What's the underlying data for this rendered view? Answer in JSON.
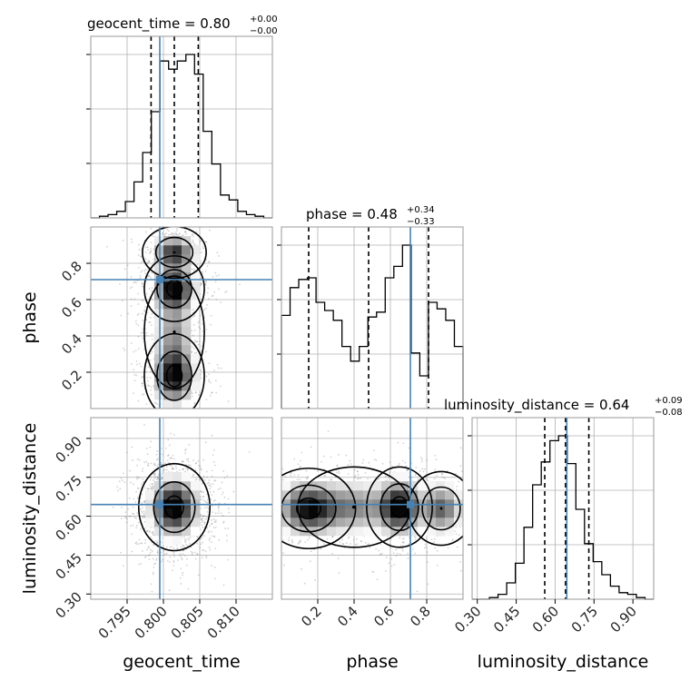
{
  "chart_data": {
    "type": "corner",
    "colors": {
      "truth": "#4682b4",
      "hist": "#000000",
      "grid": "#b0b0b0",
      "points": "#7f7f7f"
    },
    "grid": true,
    "parameters": [
      {
        "key": "geocent_time",
        "label": "geocent_time",
        "range": [
          0.79,
          0.815
        ],
        "ticks": [
          0.795,
          0.8,
          0.805,
          0.81
        ],
        "tick_labels": [
          "0.795",
          "0.800",
          "0.805",
          "0.810"
        ],
        "truth": 0.7995,
        "title": {
          "prefix": "geocent_time = 0.80",
          "plus": "+0.00",
          "minus": "−0.00"
        },
        "quantiles": [
          0.7983,
          0.8015,
          0.8048
        ],
        "hist": [
          0.0,
          0.01,
          0.02,
          0.04,
          0.1,
          0.22,
          0.4,
          0.65,
          0.96,
          0.91,
          0.96,
          1.0,
          0.88,
          0.53,
          0.33,
          0.14,
          0.11,
          0.04,
          0.02,
          0.01,
          0.0
        ]
      },
      {
        "key": "phase",
        "label": "phase",
        "range": [
          0.0,
          1.0
        ],
        "ticks": [
          0.2,
          0.4,
          0.6,
          0.8
        ],
        "tick_labels": [
          "0.2",
          "0.4",
          "0.6",
          "0.8"
        ],
        "truth": 0.71,
        "title": {
          "prefix": "phase = 0.48",
          "plus": "+0.34",
          "minus": "−0.33"
        },
        "quantiles": [
          0.15,
          0.48,
          0.81
        ],
        "hist": [
          0.57,
          0.74,
          0.79,
          0.8,
          0.65,
          0.6,
          0.54,
          0.38,
          0.29,
          0.38,
          0.56,
          0.59,
          0.8,
          0.87,
          1.0,
          0.34,
          0.2,
          0.65,
          0.61,
          0.54,
          0.38
        ]
      },
      {
        "key": "luminosity_distance",
        "label": "luminosity_distance",
        "range": [
          0.28,
          0.98
        ],
        "ticks": [
          0.3,
          0.45,
          0.6,
          0.75,
          0.9
        ],
        "tick_labels": [
          "0.30",
          "0.45",
          "0.60",
          "0.75",
          "0.90"
        ],
        "truth": 0.645,
        "title": {
          "prefix": "luminosity_distance = 0.64",
          "plus": "+0.09",
          "minus": "−0.08"
        },
        "quantiles": [
          0.56,
          0.64,
          0.73
        ],
        "hist": [
          0.0,
          0.0,
          0.01,
          0.03,
          0.1,
          0.22,
          0.44,
          0.7,
          0.84,
          0.97,
          1.0,
          0.83,
          0.55,
          0.34,
          0.23,
          0.15,
          0.08,
          0.04,
          0.03,
          0.01,
          0.0
        ]
      }
    ],
    "pairs": [
      {
        "x": "geocent_time",
        "y": "phase",
        "blobs": [
          {
            "mx": 0.8015,
            "my": 0.86,
            "sx": 0.0017,
            "sy": 0.055,
            "w": 0.8
          },
          {
            "mx": 0.8015,
            "my": 0.66,
            "sx": 0.0016,
            "sy": 0.07,
            "w": 1.0
          },
          {
            "mx": 0.8015,
            "my": 0.18,
            "sx": 0.0016,
            "sy": 0.09,
            "w": 0.95
          },
          {
            "mx": 0.8015,
            "my": 0.42,
            "sx": 0.0016,
            "sy": 0.12,
            "w": 0.45
          }
        ]
      },
      {
        "x": "geocent_time",
        "y": "luminosity_distance",
        "blobs": [
          {
            "mx": 0.8015,
            "my": 0.635,
            "sx": 0.0019,
            "sy": 0.065,
            "w": 1.0
          }
        ]
      },
      {
        "x": "phase",
        "y": "luminosity_distance",
        "blobs": [
          {
            "mx": 0.15,
            "my": 0.63,
            "sx": 0.1,
            "sy": 0.06,
            "w": 0.9
          },
          {
            "mx": 0.65,
            "my": 0.635,
            "sx": 0.07,
            "sy": 0.06,
            "w": 1.0
          },
          {
            "mx": 0.88,
            "my": 0.63,
            "sx": 0.07,
            "sy": 0.055,
            "w": 0.65
          },
          {
            "mx": 0.4,
            "my": 0.635,
            "sx": 0.12,
            "sy": 0.06,
            "w": 0.5
          }
        ]
      }
    ]
  }
}
